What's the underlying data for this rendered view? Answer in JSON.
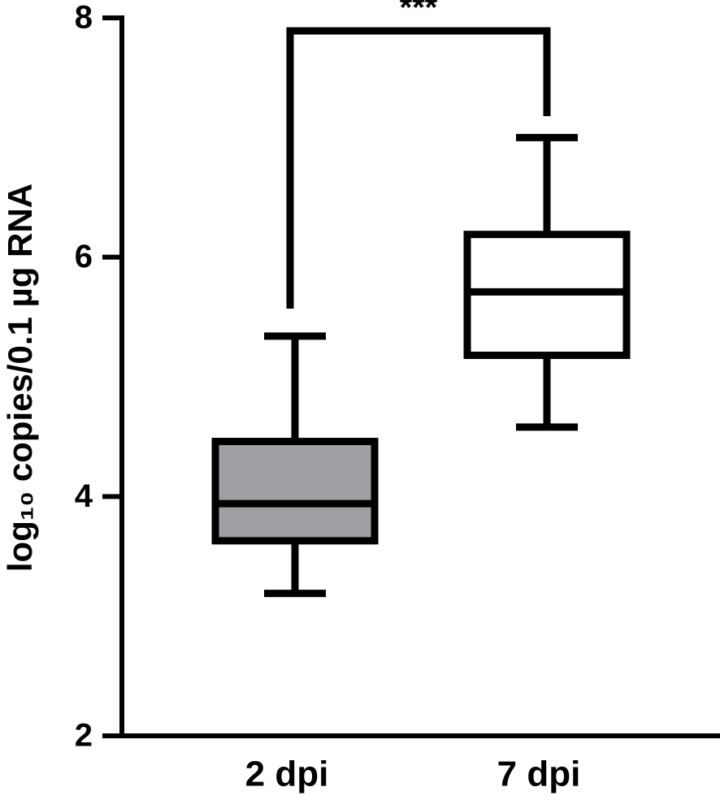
{
  "chart_data": {
    "type": "box",
    "y_label": "log₁₀ copies/0.1 µg RNA",
    "annotation": "***",
    "categories": [
      "2 dpi",
      "7 dpi"
    ],
    "colors": [
      "#a0a0a4",
      "#ffffff"
    ],
    "boxes": [
      {
        "min": 3.19,
        "q1": 3.63,
        "median": 3.94,
        "q3": 4.46,
        "max": 5.34
      },
      {
        "min": 4.58,
        "q1": 5.18,
        "median": 5.71,
        "q3": 6.19,
        "max": 7.0
      }
    ],
    "ylim": [
      2,
      8
    ],
    "yticks": [
      2,
      4,
      6,
      8
    ]
  }
}
